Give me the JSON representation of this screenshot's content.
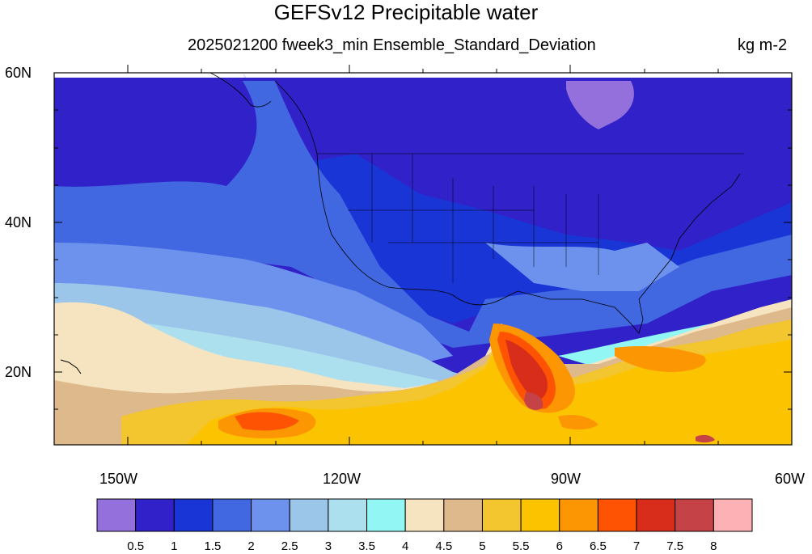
{
  "title": "GEFSv12 Precipitable water",
  "subtitle": "2025021200 fweek3_min Ensemble_Standard_Deviation",
  "units": "kg m-2",
  "map": {
    "lon_range": [
      -160,
      -60
    ],
    "lat_range": [
      10,
      60
    ],
    "y_ticks": [
      "60N",
      "40N",
      "20N"
    ],
    "x_ticks": [
      "150W",
      "120W",
      "90W",
      "60W"
    ]
  },
  "colorbar": {
    "colors": [
      "#9370db",
      "#3121c9",
      "#1a35d6",
      "#4168e1",
      "#6d92ee",
      "#9bc6ea",
      "#ade0ee",
      "#92f6f4",
      "#f6e4c0",
      "#ddb98c",
      "#f3c52e",
      "#fcc400",
      "#fd9603",
      "#fd5303",
      "#d92d1b",
      "#c54246",
      "#feb1b4"
    ],
    "labels": [
      "0.5",
      "1",
      "1.5",
      "2",
      "2.5",
      "3",
      "3.5",
      "4",
      "4.5",
      "5",
      "5.5",
      "6",
      "6.5",
      "7",
      "7.5",
      "8"
    ]
  }
}
